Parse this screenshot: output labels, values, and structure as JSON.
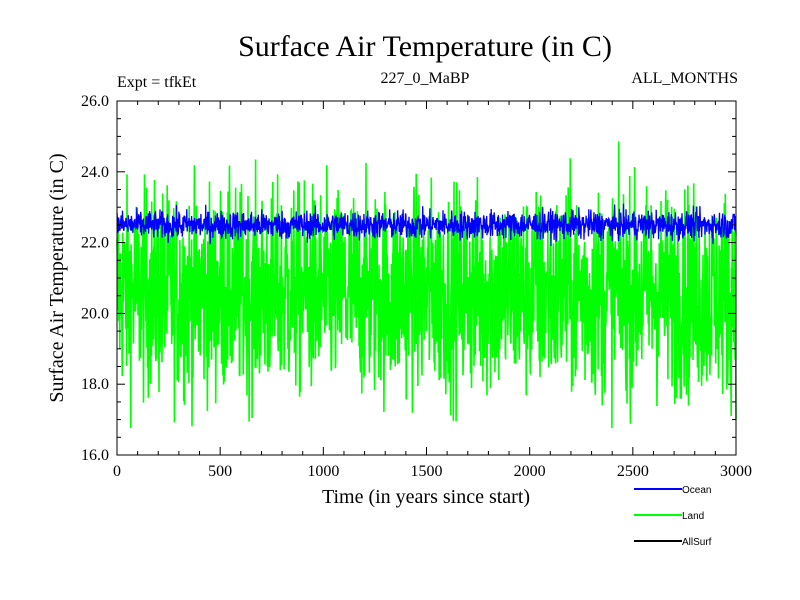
{
  "chart_data": {
    "type": "line",
    "title": "Surface Air Temperature (in C)",
    "subtitle_left": "Expt = tfkEt",
    "subtitle_center": "227_0_MaBP",
    "subtitle_right": "ALL_MONTHS",
    "xlabel": "Time (in years since start)",
    "ylabel": "Surface Air Temperature (in C)",
    "xlim": [
      0,
      3000
    ],
    "ylim": [
      16.0,
      26.0
    ],
    "x_ticks": [
      0,
      500,
      1000,
      1500,
      2000,
      2500,
      3000
    ],
    "x_tick_labels": [
      "0",
      "500",
      "1000",
      "1500",
      "2000",
      "2500",
      "3000"
    ],
    "y_ticks": [
      16,
      18,
      20,
      22,
      24,
      26
    ],
    "y_tick_labels": [
      "16.0",
      "18.0",
      "20.0",
      "22.0",
      "24.0",
      "26.0"
    ],
    "grid": false,
    "legend_position": "bottom-right",
    "series": [
      {
        "name": "Ocean",
        "color": "#0000ff",
        "mean": 22.5,
        "range": [
          21.9,
          23.3
        ]
      },
      {
        "name": "Land",
        "color": "#00ff00",
        "mean": 20.6,
        "range": [
          16.6,
          25.1
        ]
      },
      {
        "name": "AllSurf",
        "color": "#000000"
      }
    ]
  }
}
